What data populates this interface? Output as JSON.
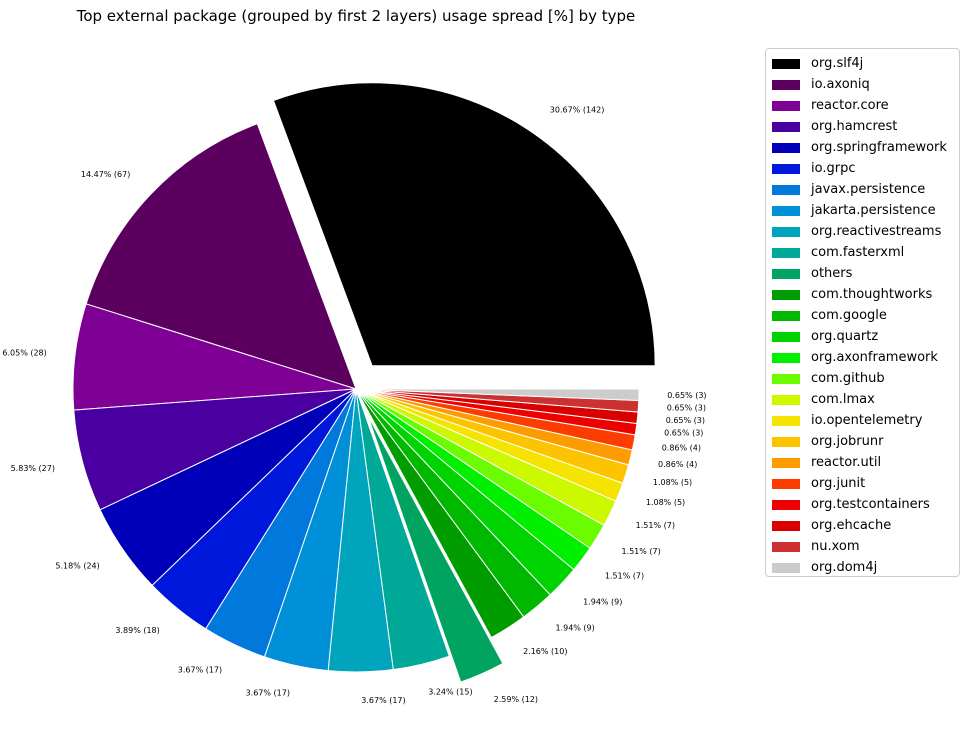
{
  "chart_data": {
    "type": "pie",
    "title": "Top external package (grouped by first 2 layers) usage spread [%] by type",
    "legend_position": "right",
    "slices": [
      {
        "name": "org.slf4j",
        "value": 142,
        "label": "30.67% (142)",
        "color": "#000000"
      },
      {
        "name": "io.axoniq",
        "value": 67,
        "label": "14.47% (67)",
        "color": "#5c0060"
      },
      {
        "name": "reactor.core",
        "value": 28,
        "label": "6.05% (28)",
        "color": "#7e0094"
      },
      {
        "name": "org.hamcrest",
        "value": 27,
        "label": "5.83% (27)",
        "color": "#4a00a0"
      },
      {
        "name": "org.springframework",
        "value": 24,
        "label": "5.18% (24)",
        "color": "#0000b8"
      },
      {
        "name": "io.grpc",
        "value": 18,
        "label": "3.89% (18)",
        "color": "#0018dc"
      },
      {
        "name": "javax.persistence",
        "value": 17,
        "label": "3.67% (17)",
        "color": "#0078dc"
      },
      {
        "name": "jakarta.persistence",
        "value": 17,
        "label": "3.67% (17)",
        "color": "#0090d8"
      },
      {
        "name": "org.reactivestreams",
        "value": 17,
        "label": "3.67% (17)",
        "color": "#00a4bc"
      },
      {
        "name": "com.fasterxml",
        "value": 15,
        "label": "3.24% (15)",
        "color": "#00a898"
      },
      {
        "name": "others",
        "value": 12,
        "label": "2.59% (12)",
        "color": "#00a460"
      },
      {
        "name": "com.thoughtworks",
        "value": 10,
        "label": "2.16% (10)",
        "color": "#009c00"
      },
      {
        "name": "com.google",
        "value": 9,
        "label": "1.94% (9)",
        "color": "#00b800"
      },
      {
        "name": "org.quartz",
        "value": 9,
        "label": "1.94% (9)",
        "color": "#00d400"
      },
      {
        "name": "org.axonframework",
        "value": 7,
        "label": "1.51% (7)",
        "color": "#00f000"
      },
      {
        "name": "com.github",
        "value": 7,
        "label": "1.51% (7)",
        "color": "#6cfc00"
      },
      {
        "name": "com.lmax",
        "value": 7,
        "label": "1.51% (7)",
        "color": "#ccf800"
      },
      {
        "name": "io.opentelemetry",
        "value": 5,
        "label": "1.08% (5)",
        "color": "#f4e400"
      },
      {
        "name": "org.jobrunr",
        "value": 5,
        "label": "1.08% (5)",
        "color": "#fcc400"
      },
      {
        "name": "reactor.util",
        "value": 4,
        "label": "0.86% (4)",
        "color": "#fc9c00"
      },
      {
        "name": "org.junit",
        "value": 4,
        "label": "0.86% (4)",
        "color": "#fc3c00"
      },
      {
        "name": "org.testcontainers",
        "value": 3,
        "label": "0.65% (3)",
        "color": "#ec0000"
      },
      {
        "name": "org.ehcache",
        "value": 3,
        "label": "0.65% (3)",
        "color": "#d80000"
      },
      {
        "name": "nu.xom",
        "value": 3,
        "label": "0.65% (3)",
        "color": "#cc3030"
      },
      {
        "name": "org.dom4j",
        "value": 3,
        "label": "0.65% (3)",
        "color": "#cccccc"
      }
    ],
    "exploded": [
      "org.slf4j",
      "others"
    ]
  }
}
